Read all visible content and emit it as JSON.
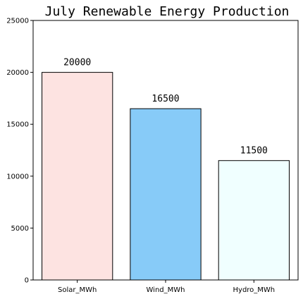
{
  "chart_data": {
    "type": "bar",
    "title": "July Renewable Energy Production",
    "xlabel": "",
    "ylabel": "",
    "categories": [
      "Solar_MWh",
      "Wind_MWh",
      "Hydro_MWh"
    ],
    "values": [
      20000,
      16500,
      11500
    ],
    "data_labels": [
      "20000",
      "16500",
      "11500"
    ],
    "bar_colors": [
      "#fde3e1",
      "#87cbf8",
      "#f0ffff"
    ],
    "ylim": [
      0,
      25000
    ],
    "yticks": [
      0,
      5000,
      10000,
      15000,
      20000,
      25000
    ],
    "ytick_labels": [
      "0",
      "5000",
      "10000",
      "15000",
      "20000",
      "25000"
    ],
    "grid": false,
    "legend": "none"
  }
}
